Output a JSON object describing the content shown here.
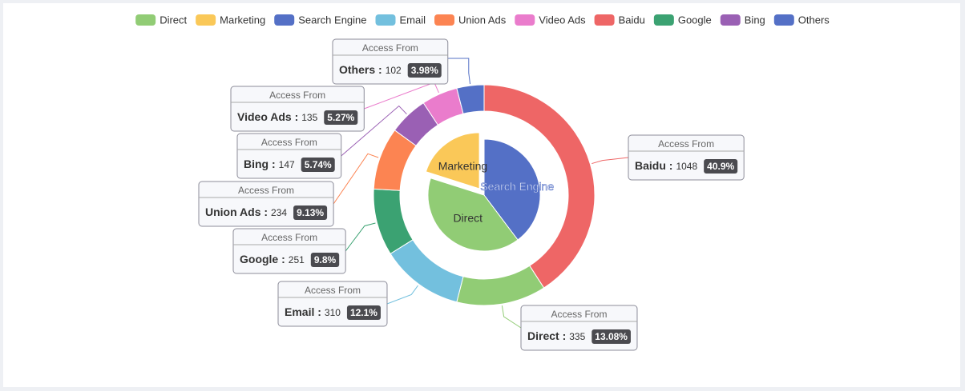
{
  "chart_data": {
    "type": "pie",
    "legend_position": "top",
    "legend": [
      {
        "name": "Direct",
        "color": "#91cc75"
      },
      {
        "name": "Marketing",
        "color": "#fac858"
      },
      {
        "name": "Search Engine",
        "color": "#5470c6"
      },
      {
        "name": "Email",
        "color": "#73c0de"
      },
      {
        "name": "Union Ads",
        "color": "#fc8452"
      },
      {
        "name": "Video Ads",
        "color": "#ea7ccc"
      },
      {
        "name": "Baidu",
        "color": "#ee6666"
      },
      {
        "name": "Google",
        "color": "#3ba272"
      },
      {
        "name": "Bing",
        "color": "#9a60b4"
      },
      {
        "name": "Others",
        "color": "#5470c6"
      }
    ],
    "inner": [
      {
        "name": "Direct",
        "value": 1548,
        "color": "#91cc75"
      },
      {
        "name": "Marketing",
        "value": 775,
        "color": "#fac858",
        "selected": true
      },
      {
        "name": "Search Engine",
        "value": 1533,
        "color": "#5470c6"
      }
    ],
    "outer": [
      {
        "name": "Baidu",
        "value": 1048,
        "percent": "40.9%",
        "color": "#ee6666"
      },
      {
        "name": "Direct",
        "value": 335,
        "percent": "13.08%",
        "color": "#91cc75"
      },
      {
        "name": "Email",
        "value": 310,
        "percent": "12.1%",
        "color": "#73c0de"
      },
      {
        "name": "Google",
        "value": 251,
        "percent": "9.8%",
        "color": "#3ba272"
      },
      {
        "name": "Union Ads",
        "value": 234,
        "percent": "9.13%",
        "color": "#fc8452"
      },
      {
        "name": "Bing",
        "value": 147,
        "percent": "5.74%",
        "color": "#9a60b4"
      },
      {
        "name": "Video Ads",
        "value": 135,
        "percent": "5.27%",
        "color": "#ea7ccc"
      },
      {
        "name": "Others",
        "value": 102,
        "percent": "3.98%",
        "color": "#5470c6"
      }
    ],
    "callout_header": "Access From"
  }
}
